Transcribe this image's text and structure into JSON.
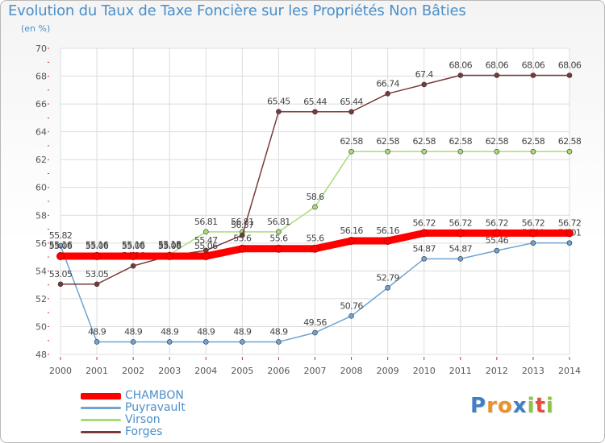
{
  "header": {
    "title": "Evolution du Taux de Taxe Foncière sur les Propriétés Non Bâties",
    "unit": "(en %)"
  },
  "logo": {
    "letters": [
      "P",
      "r",
      "o",
      "x",
      "i",
      "t",
      "i"
    ],
    "colors": [
      "#3d7fc9",
      "#e8922a",
      "#e8922a",
      "#3d7fc9",
      "#8cc63f",
      "#e84d3c",
      "#8cc63f"
    ]
  },
  "chart_data": {
    "type": "line",
    "title": "Evolution du Taux de Taxe Foncière sur les Propriétés Non Bâties",
    "ylabel": "(en %)",
    "xlabel": "",
    "ylim": [
      48,
      70
    ],
    "yticks": [
      "48",
      "50",
      "52",
      "54",
      "56",
      "58",
      "60",
      "62",
      "64",
      "66",
      "68",
      "70"
    ],
    "grid": true,
    "legend_position": "bottom-left",
    "categories": [
      "2000",
      "2001",
      "2002",
      "2003",
      "2004",
      "2005",
      "2006",
      "2007",
      "2008",
      "2009",
      "2010",
      "2011",
      "2012",
      "2013",
      "2014"
    ],
    "series": [
      {
        "name": "CHAMBON",
        "color": "#ff0000",
        "values": [
          55.06,
          55.06,
          55.06,
          55.06,
          55.06,
          55.6,
          55.6,
          55.6,
          56.16,
          56.16,
          56.72,
          56.72,
          56.72,
          56.72,
          56.72
        ],
        "labels": [
          "55.06",
          "55.06",
          "55.06",
          "55.06",
          "55.06",
          "55.6",
          "55.6",
          "55.6",
          "56.16",
          "56.16",
          "56.72",
          "56.72",
          "56.72",
          "56.72",
          "56.72"
        ]
      },
      {
        "name": "Puyravault",
        "color": "#6fa3d4",
        "values": [
          55.82,
          48.9,
          48.9,
          48.9,
          48.9,
          48.9,
          48.9,
          49.56,
          50.76,
          52.79,
          54.87,
          54.87,
          55.46,
          56.01,
          56.01
        ],
        "labels": [
          "55.82",
          "48.9",
          "48.9",
          "48.9",
          "48.9",
          "48.9",
          "48.9",
          "49.56",
          "50.76",
          "52.79",
          "54.87",
          "54.87",
          "55.46",
          "56.01",
          "56.01"
        ]
      },
      {
        "name": "Virson",
        "color": "#a8dc78",
        "values": [
          55.16,
          55.16,
          55.16,
          55.18,
          56.81,
          56.81,
          56.81,
          58.6,
          62.58,
          62.58,
          62.58,
          62.58,
          62.58,
          62.58,
          62.58
        ],
        "labels": [
          "55.16",
          "55.16",
          "55.16",
          "55.18",
          "56.81",
          "56.81",
          "56.81",
          "58.6",
          "62.58",
          "62.58",
          "62.58",
          "62.58",
          "62.58",
          "62.58",
          "62.58"
        ]
      },
      {
        "name": "Forges",
        "color": "#7a3a3a",
        "values": [
          53.05,
          53.05,
          54.36,
          55.08,
          55.47,
          56.57,
          65.45,
          65.44,
          65.44,
          66.74,
          67.4,
          68.06,
          68.06,
          68.06,
          68.06
        ],
        "labels": [
          "53.05",
          "53.05",
          "54.36",
          "55.08",
          "55.47",
          "56.57",
          "65.45",
          "65.44",
          "65.44",
          "66.74",
          "67.4",
          "68.06",
          "68.06",
          "68.06",
          "68.06"
        ]
      }
    ]
  }
}
